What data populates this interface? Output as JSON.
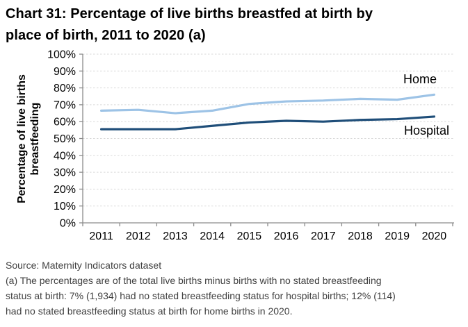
{
  "page": {
    "title_lines": [
      "Chart 31: Percentage of live births breastfed at birth by",
      "place of birth, 2011 to 2020 (a)"
    ],
    "source": "Source: Maternity Indicators dataset",
    "footnote_lines": [
      "(a) The percentages are of the total live births minus births with no stated breastfeeding",
      "status at birth: 7% (1,934) had no stated breastfeeding status for hospital births; 12% (114)",
      "had no stated breastfeeding status at birth for home births in 2020."
    ]
  },
  "chart_data": {
    "type": "line",
    "title": "Chart 31: Percentage of live births breastfed at birth by place of birth, 2011 to 2020 (a)",
    "categories": [
      "2011",
      "2012",
      "2013",
      "2014",
      "2015",
      "2016",
      "2017",
      "2018",
      "2019",
      "2020"
    ],
    "series": [
      {
        "name": "Home",
        "color": "#9dc3e6",
        "values": [
          66.5,
          67,
          65,
          66.5,
          70.5,
          72,
          72.5,
          73.5,
          73,
          76
        ]
      },
      {
        "name": "Hospital",
        "color": "#1f4e79",
        "values": [
          55.5,
          55.5,
          55.5,
          57.5,
          59.5,
          60.5,
          60,
          61,
          61.5,
          63
        ]
      }
    ],
    "xlabel": "",
    "ylabel": "Percentage of live births\nbreastfeeding",
    "ylim": [
      0,
      100
    ],
    "y_tick_step": 10,
    "y_tick_labels": [
      "0%",
      "10%",
      "20%",
      "30%",
      "40%",
      "50%",
      "60%",
      "70%",
      "80%",
      "90%",
      "100%"
    ],
    "grid": "horizontal-dashed",
    "legend_position": "line-end-labels"
  },
  "colors": {
    "gridline": "#d9d9d9",
    "axis": "#8c8c8c",
    "tick_label": "#000000",
    "series_label": "#000000",
    "footer_text": "#404040"
  }
}
